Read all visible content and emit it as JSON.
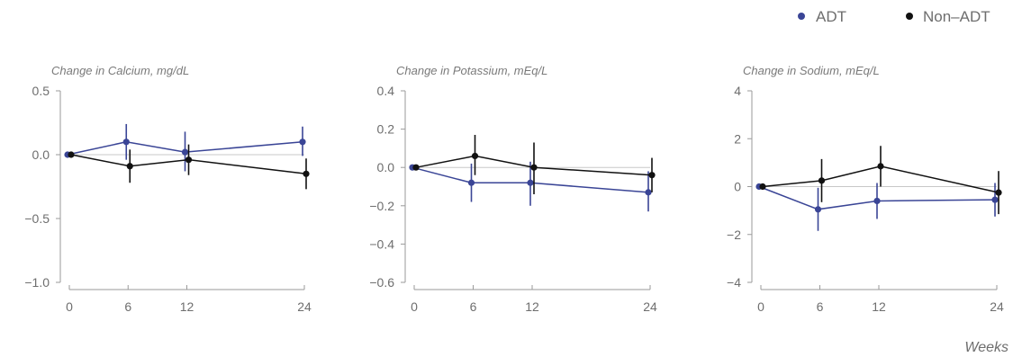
{
  "legend": {
    "items": [
      {
        "label": "ADT",
        "color": "#3a4596"
      },
      {
        "label": "Non–ADT",
        "color": "#111111"
      }
    ]
  },
  "x_axis_label": "Weeks",
  "chart_data": [
    {
      "type": "scatter",
      "title": "Change in Calcium, mg/dL",
      "x_ticks": [
        0,
        6,
        12,
        24
      ],
      "y_ticks": [
        0.5,
        0.0,
        -0.5,
        -1.0
      ],
      "y_tick_labels": [
        "0.5",
        "0.0",
        "−0.5",
        "−1.0"
      ],
      "ylim": [
        -1.0,
        0.5
      ],
      "xlim": [
        0,
        24
      ],
      "series": [
        {
          "name": "ADT",
          "color": "#3a4596",
          "points": [
            {
              "x": 0,
              "y": 0.0,
              "lo": 0.0,
              "hi": 0.0
            },
            {
              "x": 6,
              "y": 0.1,
              "lo": -0.04,
              "hi": 0.24
            },
            {
              "x": 12,
              "y": 0.02,
              "lo": -0.13,
              "hi": 0.18
            },
            {
              "x": 24,
              "y": 0.1,
              "lo": -0.01,
              "hi": 0.22
            }
          ]
        },
        {
          "name": "Non–ADT",
          "color": "#111111",
          "points": [
            {
              "x": 0,
              "y": 0.0,
              "lo": 0.0,
              "hi": 0.0
            },
            {
              "x": 6,
              "y": -0.09,
              "lo": -0.22,
              "hi": 0.04
            },
            {
              "x": 12,
              "y": -0.04,
              "lo": -0.16,
              "hi": 0.08
            },
            {
              "x": 24,
              "y": -0.15,
              "lo": -0.27,
              "hi": -0.03
            }
          ]
        }
      ]
    },
    {
      "type": "scatter",
      "title": "Change in Potassium, mEq/L",
      "x_ticks": [
        0,
        6,
        12,
        24
      ],
      "y_ticks": [
        0.4,
        0.2,
        0.0,
        -0.2,
        -0.4,
        -0.6
      ],
      "y_tick_labels": [
        "0.4",
        "0.2",
        "0.0",
        "−0.2",
        "−0.4",
        "−0.6"
      ],
      "ylim": [
        -0.6,
        0.4
      ],
      "xlim": [
        0,
        24
      ],
      "series": [
        {
          "name": "ADT",
          "color": "#3a4596",
          "points": [
            {
              "x": 0,
              "y": 0.0,
              "lo": 0.0,
              "hi": 0.0
            },
            {
              "x": 6,
              "y": -0.08,
              "lo": -0.18,
              "hi": 0.02
            },
            {
              "x": 12,
              "y": -0.08,
              "lo": -0.2,
              "hi": 0.03
            },
            {
              "x": 24,
              "y": -0.13,
              "lo": -0.23,
              "hi": -0.02
            }
          ]
        },
        {
          "name": "Non–ADT",
          "color": "#111111",
          "points": [
            {
              "x": 0,
              "y": 0.0,
              "lo": 0.0,
              "hi": 0.0
            },
            {
              "x": 6,
              "y": 0.06,
              "lo": -0.04,
              "hi": 0.17
            },
            {
              "x": 12,
              "y": 0.0,
              "lo": -0.14,
              "hi": 0.13
            },
            {
              "x": 24,
              "y": -0.04,
              "lo": -0.13,
              "hi": 0.05
            }
          ]
        }
      ]
    },
    {
      "type": "scatter",
      "title": "Change in Sodium, mEq/L",
      "x_ticks": [
        0,
        6,
        12,
        24
      ],
      "y_ticks": [
        4,
        2,
        0,
        -2,
        -4
      ],
      "y_tick_labels": [
        "4",
        "2",
        "0",
        "−2",
        "−4"
      ],
      "ylim": [
        -4,
        4
      ],
      "xlim": [
        0,
        24
      ],
      "series": [
        {
          "name": "ADT",
          "color": "#3a4596",
          "points": [
            {
              "x": 0,
              "y": 0.0,
              "lo": 0.0,
              "hi": 0.0
            },
            {
              "x": 6,
              "y": -0.95,
              "lo": -1.85,
              "hi": -0.05
            },
            {
              "x": 12,
              "y": -0.6,
              "lo": -1.35,
              "hi": 0.15
            },
            {
              "x": 24,
              "y": -0.55,
              "lo": -1.25,
              "hi": 0.15
            }
          ]
        },
        {
          "name": "Non–ADT",
          "color": "#111111",
          "points": [
            {
              "x": 0,
              "y": 0.0,
              "lo": 0.0,
              "hi": 0.0
            },
            {
              "x": 6,
              "y": 0.25,
              "lo": -0.65,
              "hi": 1.15
            },
            {
              "x": 12,
              "y": 0.85,
              "lo": 0.0,
              "hi": 1.7
            },
            {
              "x": 24,
              "y": -0.25,
              "lo": -1.15,
              "hi": 0.65
            }
          ]
        }
      ]
    }
  ]
}
